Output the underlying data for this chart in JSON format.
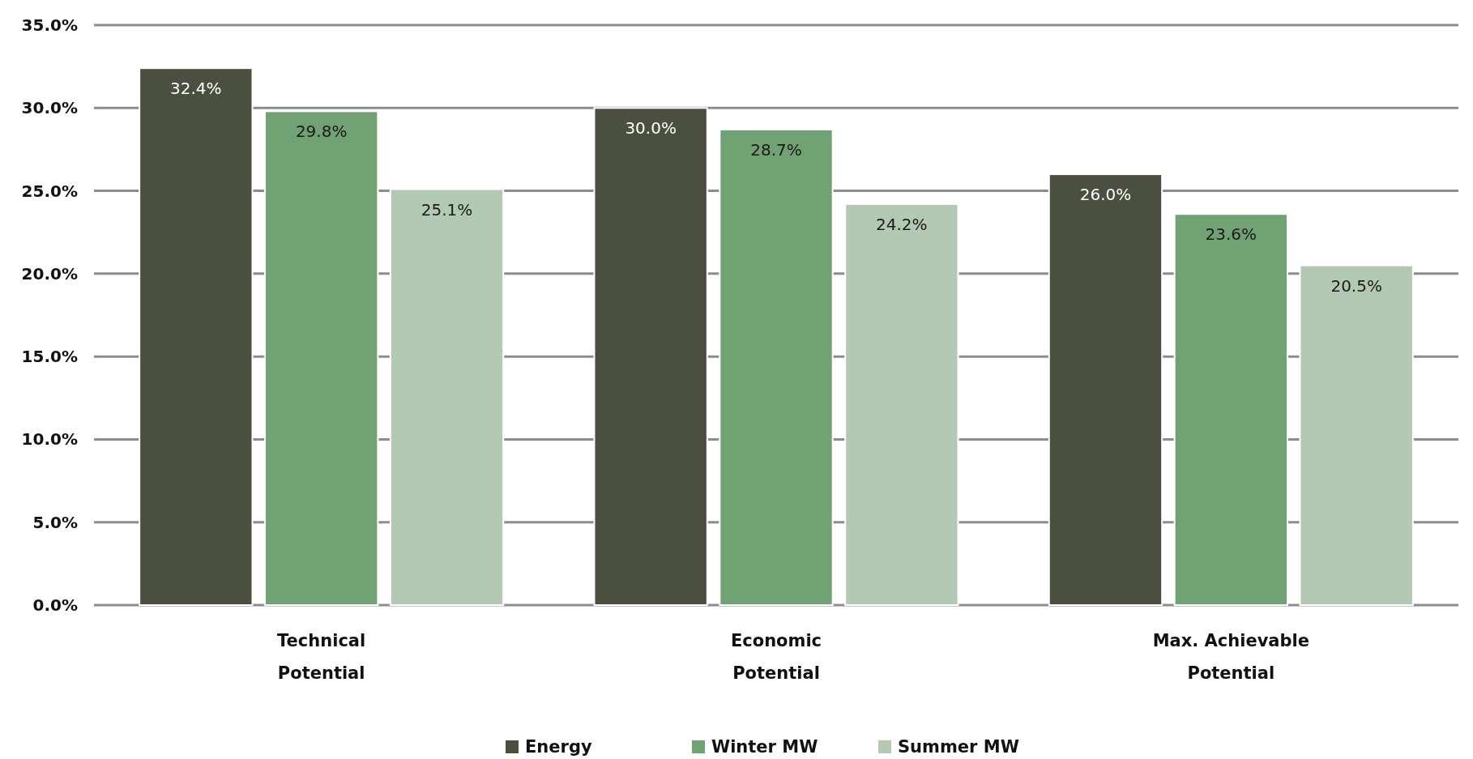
{
  "chart_data": {
    "type": "bar",
    "categories": [
      "Technical Potential",
      "Economic Potential",
      "Max. Achievable Potential"
    ],
    "series": [
      {
        "name": "Energy",
        "color": "#4b4f40",
        "values": [
          32.4,
          30.0,
          26.0
        ],
        "value_labels": [
          "32.4%",
          "30.0%",
          "26.0%"
        ]
      },
      {
        "name": "Winter MW",
        "color": "#70a274",
        "values": [
          29.8,
          28.7,
          23.6
        ],
        "value_labels": [
          "29.8%",
          "28.7%",
          "23.6%"
        ]
      },
      {
        "name": "Summer MW",
        "color": "#b4c9b3",
        "values": [
          25.1,
          24.2,
          20.5
        ],
        "value_labels": [
          "25.1%",
          "24.2%",
          "20.5%"
        ]
      }
    ],
    "ylim": [
      0,
      35
    ],
    "yticks": [
      {
        "value": 0,
        "label": "0.0%"
      },
      {
        "value": 5,
        "label": "5.0%"
      },
      {
        "value": 10,
        "label": "10.0%"
      },
      {
        "value": 15,
        "label": "15.0%"
      },
      {
        "value": 20,
        "label": "20.0%"
      },
      {
        "value": 25,
        "label": "25.0%"
      },
      {
        "value": 30,
        "label": "30.0%"
      },
      {
        "value": 35,
        "label": "35.0%"
      }
    ],
    "grid": "y",
    "legend": "bottom"
  }
}
